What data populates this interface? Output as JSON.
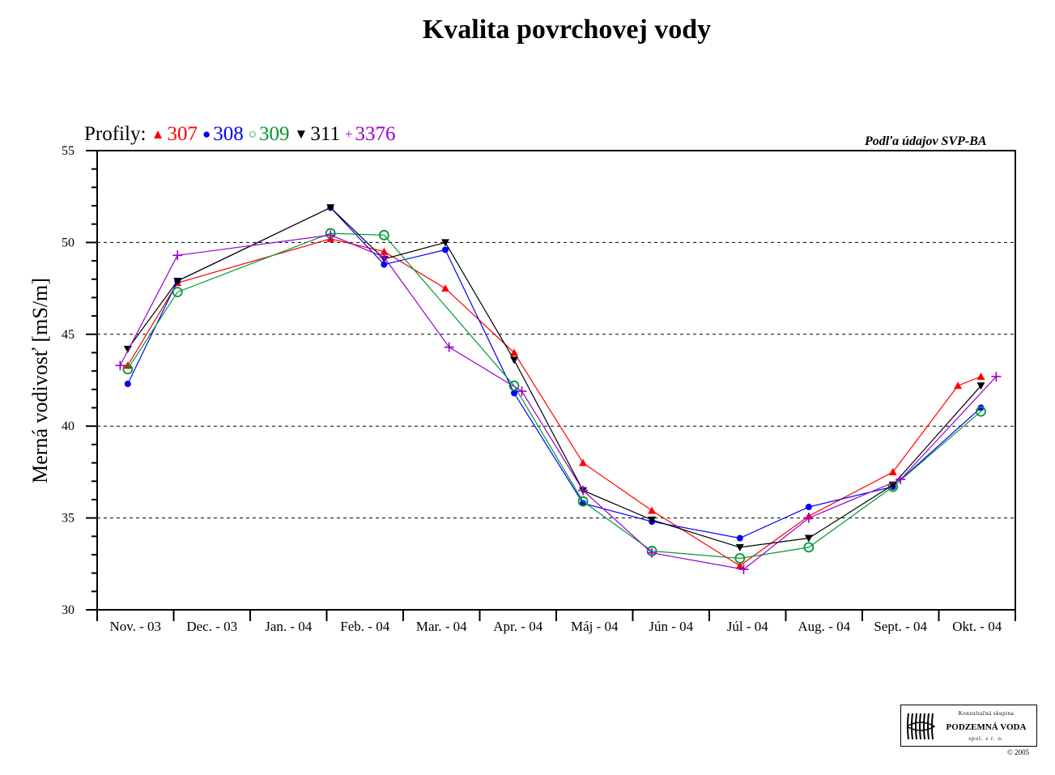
{
  "chart_data": {
    "type": "line",
    "title": "Kvalita povrchovej vody",
    "ylabel": "Merná vodivosť [mS/m]",
    "xlabel": "",
    "legend_prefix": "Profily:",
    "legend_position": "top-left",
    "source_note": "Podľa údajov SVP-BA",
    "ylim": [
      30,
      55
    ],
    "yticks": [
      "30",
      "35",
      "40",
      "45",
      "50",
      "55"
    ],
    "grid": "horizontal dashed at 35, 40, 45, 50",
    "categories": [
      "Nov. - 03",
      "Dec. - 03",
      "Jan. - 04",
      "Feb. - 04",
      "Mar. - 04",
      "Apr. - 04",
      "Máj - 04",
      "Jún - 04",
      "Júl - 04",
      "Aug. - 04",
      "Sept. - 04",
      "Okt. - 04"
    ],
    "series": [
      {
        "name": "307",
        "color": "#ff0000",
        "marker": "triangle-up",
        "legend_symbol": "▲",
        "points": [
          [
            0.4,
            43.3
          ],
          [
            1.05,
            47.8
          ],
          [
            3.05,
            50.2
          ],
          [
            3.75,
            49.5
          ],
          [
            4.55,
            47.5
          ],
          [
            5.45,
            44.0
          ],
          [
            6.35,
            38.0
          ],
          [
            7.25,
            35.4
          ],
          [
            8.4,
            32.4
          ],
          [
            9.3,
            35.1
          ],
          [
            10.4,
            37.5
          ],
          [
            11.25,
            42.2
          ],
          [
            11.55,
            42.7
          ]
        ]
      },
      {
        "name": "308",
        "color": "#0000ff",
        "marker": "circle-filled",
        "legend_symbol": "●",
        "points": [
          [
            0.4,
            42.3
          ],
          [
            1.05,
            47.9
          ],
          [
            3.05,
            51.9
          ],
          [
            3.75,
            48.8
          ],
          [
            4.55,
            49.6
          ],
          [
            5.45,
            41.8
          ],
          [
            6.35,
            35.8
          ],
          [
            7.25,
            34.8
          ],
          [
            8.4,
            33.9
          ],
          [
            9.3,
            35.6
          ],
          [
            10.4,
            36.7
          ],
          [
            11.55,
            41.0
          ]
        ]
      },
      {
        "name": "309",
        "color": "#009933",
        "marker": "circle-open",
        "legend_symbol": "○",
        "points": [
          [
            0.4,
            43.1
          ],
          [
            1.05,
            47.3
          ],
          [
            3.05,
            50.5
          ],
          [
            3.75,
            50.4
          ],
          [
            5.45,
            42.2
          ],
          [
            6.35,
            35.9
          ],
          [
            7.25,
            33.2
          ],
          [
            8.4,
            32.8
          ],
          [
            9.3,
            33.4
          ],
          [
            10.4,
            36.7
          ],
          [
            11.55,
            40.8
          ]
        ]
      },
      {
        "name": "311",
        "color": "#000000",
        "marker": "triangle-down",
        "legend_symbol": "▼",
        "points": [
          [
            0.4,
            44.2
          ],
          [
            1.05,
            47.9
          ],
          [
            3.05,
            51.9
          ],
          [
            3.75,
            49.1
          ],
          [
            4.55,
            50.0
          ],
          [
            5.45,
            43.6
          ],
          [
            6.35,
            36.5
          ],
          [
            7.25,
            34.9
          ],
          [
            8.4,
            33.4
          ],
          [
            9.3,
            33.9
          ],
          [
            10.4,
            36.8
          ],
          [
            11.55,
            42.2
          ]
        ]
      },
      {
        "name": "3376",
        "color": "#9900cc",
        "marker": "plus",
        "legend_symbol": "+",
        "points": [
          [
            0.3,
            43.3
          ],
          [
            1.05,
            49.3
          ],
          [
            3.05,
            50.4
          ],
          [
            3.75,
            49.2
          ],
          [
            4.6,
            44.3
          ],
          [
            5.55,
            41.9
          ],
          [
            6.35,
            36.5
          ],
          [
            7.25,
            33.1
          ],
          [
            8.45,
            32.2
          ],
          [
            9.3,
            35.0
          ],
          [
            10.5,
            37.1
          ],
          [
            11.75,
            42.7
          ]
        ]
      }
    ]
  },
  "logo": {
    "line1": "Konzultačná skupina",
    "line2": "PODZEMNÁ VODA",
    "line3": "spol. s r. o."
  },
  "copyright": "© 2005"
}
